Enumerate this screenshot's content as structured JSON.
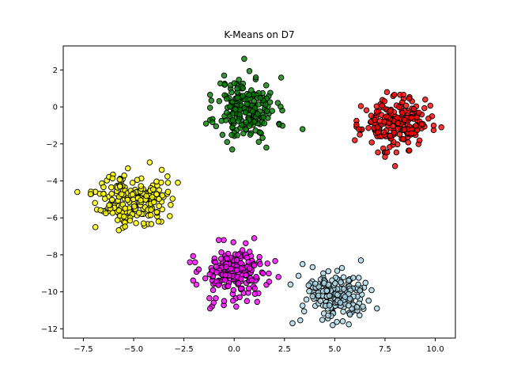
{
  "chart_data": {
    "type": "scatter",
    "title": "K-Means on D7",
    "xlabel": "",
    "ylabel": "",
    "xlim": [
      -8.5,
      11.0
    ],
    "ylim": [
      -12.5,
      3.3
    ],
    "xticks": [
      -7.5,
      -5.0,
      -2.5,
      0.0,
      2.5,
      5.0,
      7.5,
      10.0
    ],
    "xtick_labels": [
      "−7.5",
      "−5.0",
      "−2.5",
      "0.0",
      "2.5",
      "5.0",
      "7.5",
      "10.0"
    ],
    "yticks": [
      2,
      0,
      -2,
      -4,
      -6,
      -8,
      -10,
      -12
    ],
    "ytick_labels": [
      "2",
      "0",
      "−2",
      "−4",
      "−6",
      "−8",
      "−10",
      "−12"
    ],
    "grid": false,
    "legend": "none",
    "point_edge_color": "#000000",
    "clusters": [
      {
        "color": "#008000",
        "center": [
          0.6,
          -0.1
        ],
        "spread": [
          0.75,
          0.85
        ],
        "count": 200,
        "seed": 11,
        "extra_points": [
          [
            0.5,
            2.6
          ],
          [
            -0.5,
            1.7
          ],
          [
            -1.4,
            -0.9
          ],
          [
            3.4,
            -1.2
          ],
          [
            1.6,
            -2.2
          ],
          [
            -0.1,
            -2.3
          ]
        ]
      },
      {
        "color": "#ff0000",
        "center": [
          8.0,
          -0.9
        ],
        "spread": [
          0.8,
          0.65
        ],
        "count": 200,
        "seed": 23,
        "extra_points": [
          [
            7.6,
            0.8
          ],
          [
            6.2,
            -1.2
          ],
          [
            10.3,
            -1.1
          ],
          [
            9.5,
            0.4
          ],
          [
            7.5,
            -2.7
          ],
          [
            8.0,
            -3.2
          ],
          [
            6.0,
            -1.8
          ]
        ]
      },
      {
        "color": "#ffff00",
        "center": [
          -5.1,
          -5.0
        ],
        "spread": [
          0.85,
          0.7
        ],
        "count": 200,
        "seed": 37,
        "extra_points": [
          [
            -7.8,
            -4.6
          ],
          [
            -4.2,
            -3.0
          ],
          [
            -2.8,
            -4.1
          ],
          [
            -6.9,
            -6.5
          ],
          [
            -4.5,
            -6.3
          ],
          [
            -3.6,
            -3.4
          ]
        ]
      },
      {
        "color": "#ff00ff",
        "center": [
          0.0,
          -9.0
        ],
        "spread": [
          0.85,
          0.75
        ],
        "count": 200,
        "seed": 53,
        "extra_points": [
          [
            -2.2,
            -8.4
          ],
          [
            -1.2,
            -10.9
          ],
          [
            2.2,
            -9.2
          ],
          [
            1.0,
            -7.1
          ],
          [
            -0.5,
            -10.5
          ]
        ]
      },
      {
        "color": "#add8e6",
        "center": [
          5.1,
          -10.2
        ],
        "spread": [
          0.85,
          0.65
        ],
        "count": 200,
        "seed": 71,
        "extra_points": [
          [
            2.9,
            -11.7
          ],
          [
            3.4,
            -8.5
          ],
          [
            6.3,
            -8.3
          ],
          [
            7.1,
            -10.9
          ],
          [
            4.9,
            -11.8
          ],
          [
            2.8,
            -9.6
          ]
        ]
      }
    ]
  }
}
